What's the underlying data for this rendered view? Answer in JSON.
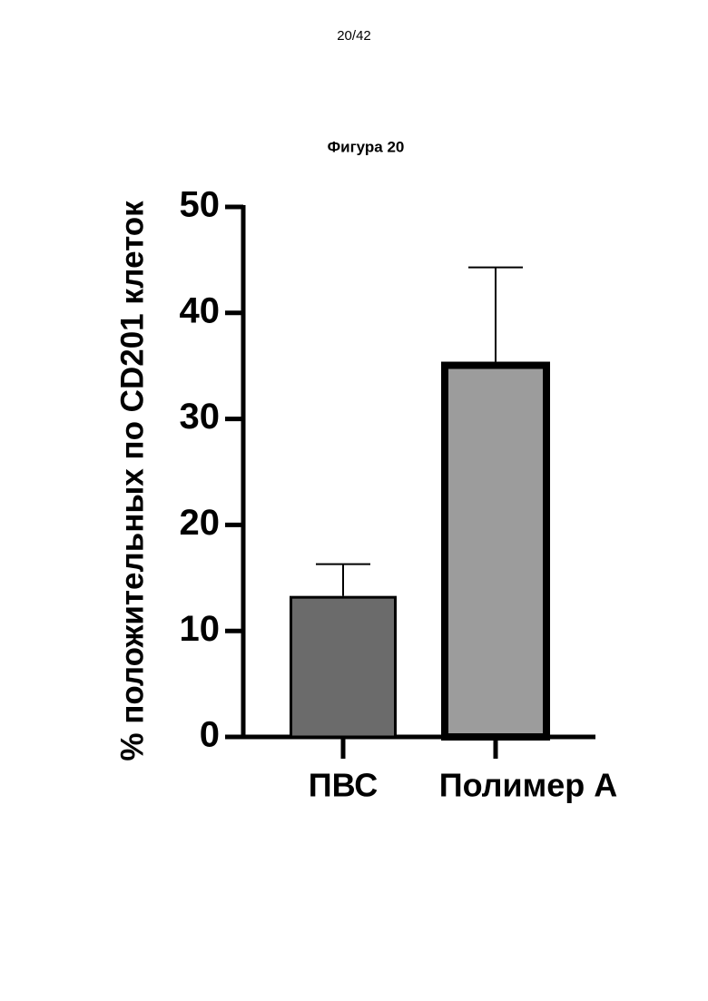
{
  "page_number": "20/42",
  "chart_data": {
    "type": "bar",
    "title": "Фигура 20",
    "y_label": "% положительных по CD201 клеток",
    "categories": [
      "ПВС",
      "Полимер А"
    ],
    "values": [
      13.3,
      35.4
    ],
    "errors": [
      3.0,
      8.9
    ],
    "colors": [
      "#6b6b6b",
      "#9c9c9c"
    ],
    "ylim": [
      0,
      50
    ],
    "yticks": [
      0,
      10,
      20,
      30,
      40,
      50
    ],
    "grid": false
  }
}
